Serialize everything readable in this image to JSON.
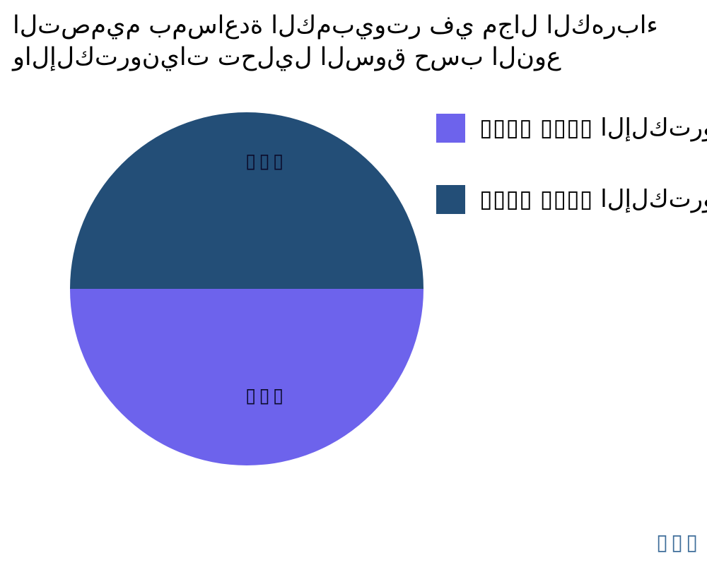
{
  "title": {
    "lines": [
      "التصميم بمساعدة الكمبيوتر في مجال الكهرباء",
      "والإلكترونيات تحليل السوق حسب النوع"
    ]
  },
  "chart_data": {
    "type": "pie",
    "title": "التصميم بمساعدة الكمبيوتر في مجال الكهرباء والإلكترونيات تحليل السوق حسب النوع",
    "background": "#FFFFFF",
    "slices": [
      {
        "position": "top",
        "label": "▯▯▯",
        "value": 50,
        "color": "#234E77"
      },
      {
        "position": "bottom",
        "label": "▯▯▯",
        "value": 50,
        "color": "#6D63EC"
      }
    ],
    "slice_label_color": "#0B0B2A",
    "legend": {
      "position": "upper right",
      "items": [
        {
          "label": "▯▯▯▯ ▯▯▯▯ الإلكترونيات",
          "color": "#6D63EC"
        },
        {
          "label": "▯▯▯▯ ▯▯▯▯ الإلكترونيات",
          "color": "#234E77"
        }
      ]
    }
  },
  "watermark": {
    "text": "▯▯▯",
    "color": "#3F6E9A"
  }
}
